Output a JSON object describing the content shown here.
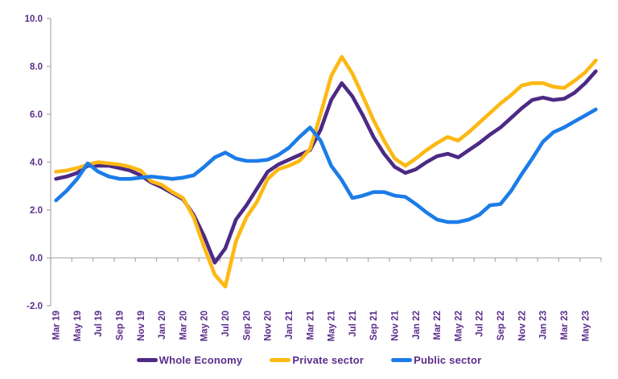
{
  "chart_data": {
    "type": "line",
    "title": "",
    "categories": [
      "Mar 19",
      "Apr 19",
      "May 19",
      "Jun 19",
      "Jul 19",
      "Aug 19",
      "Sep 19",
      "Oct 19",
      "Nov 19",
      "Dec 19",
      "Jan 20",
      "Feb 20",
      "Mar 20",
      "Apr 20",
      "May 20",
      "Jun 20",
      "Jul 20",
      "Aug 20",
      "Sep 20",
      "Oct 20",
      "Nov 20",
      "Dec 20",
      "Jan 21",
      "Feb 21",
      "Mar 21",
      "Apr 21",
      "May 21",
      "Jun 21",
      "Jul 21",
      "Aug 21",
      "Sep 21",
      "Oct 21",
      "Nov 21",
      "Dec 21",
      "Jan 22",
      "Feb 22",
      "Mar 22",
      "Apr 22",
      "May 22",
      "Jun 22",
      "Jul 22",
      "Aug 22",
      "Sep 22",
      "Oct 22",
      "Nov 22",
      "Dec 22",
      "Jan 23",
      "Feb 23",
      "Mar 23",
      "Apr 23",
      "May 23",
      "Jun 23"
    ],
    "x_labels_shown": [
      "Mar 19",
      "May 19",
      "Jul 19",
      "Sep 19",
      "Nov 19",
      "Jan 20",
      "Mar 20",
      "May 20",
      "Jul 20",
      "Sep 20",
      "Nov 20",
      "Jan 21",
      "Mar 21",
      "May 21",
      "Jul 21",
      "Sep 21",
      "Nov 21",
      "Jan 22",
      "Mar 22",
      "May 22",
      "Jul 22",
      "Sep 22",
      "Nov 22",
      "Jan 23",
      "Mar 23",
      "May 23"
    ],
    "series": [
      {
        "name": "Whole Economy",
        "color": "#4c2a85",
        "values": [
          3.3,
          3.4,
          3.55,
          3.85,
          3.85,
          3.85,
          3.75,
          3.65,
          3.45,
          3.15,
          2.95,
          2.7,
          2.45,
          1.8,
          0.9,
          -0.2,
          0.4,
          1.6,
          2.2,
          2.9,
          3.6,
          3.9,
          4.1,
          4.3,
          4.5,
          5.35,
          6.6,
          7.3,
          6.75,
          5.95,
          5.05,
          4.35,
          3.8,
          3.55,
          3.7,
          4.0,
          4.25,
          4.35,
          4.2,
          4.5,
          4.8,
          5.15,
          5.45,
          5.85,
          6.25,
          6.6,
          6.7,
          6.6,
          6.65,
          6.9,
          7.3,
          7.8
        ]
      },
      {
        "name": "Private sector",
        "color": "#fdb813",
        "values": [
          3.6,
          3.65,
          3.75,
          3.9,
          4.0,
          3.95,
          3.9,
          3.8,
          3.65,
          3.2,
          3.05,
          2.75,
          2.5,
          1.7,
          0.45,
          -0.7,
          -1.2,
          0.7,
          1.7,
          2.35,
          3.3,
          3.7,
          3.85,
          4.05,
          4.55,
          6.0,
          7.6,
          8.4,
          7.7,
          6.75,
          5.75,
          4.9,
          4.15,
          3.85,
          4.15,
          4.5,
          4.8,
          5.05,
          4.9,
          5.25,
          5.65,
          6.05,
          6.45,
          6.8,
          7.2,
          7.3,
          7.3,
          7.15,
          7.1,
          7.4,
          7.75,
          8.25
        ]
      },
      {
        "name": "Public sector",
        "color": "#1c7ce8",
        "values": [
          2.4,
          2.8,
          3.3,
          3.95,
          3.6,
          3.4,
          3.3,
          3.3,
          3.35,
          3.4,
          3.35,
          3.3,
          3.35,
          3.45,
          3.8,
          4.2,
          4.4,
          4.15,
          4.05,
          4.05,
          4.1,
          4.3,
          4.6,
          5.05,
          5.45,
          4.9,
          3.85,
          3.25,
          2.5,
          2.6,
          2.75,
          2.75,
          2.6,
          2.55,
          2.25,
          1.9,
          1.6,
          1.5,
          1.5,
          1.6,
          1.8,
          2.2,
          2.25,
          2.8,
          3.5,
          4.15,
          4.85,
          5.25,
          5.45,
          5.7,
          5.95,
          6.2
        ]
      }
    ],
    "ylim": [
      -2.0,
      10.0
    ],
    "yticks": [
      "10.0",
      "8.0",
      "6.0",
      "4.0",
      "2.0",
      "0.0",
      "-2.0"
    ],
    "ytick_values": [
      10,
      8,
      6,
      4,
      2,
      0,
      -2
    ],
    "grid": "off",
    "legend_position": "bottom",
    "axis_line_color": "#b0b0b0",
    "label_color": "#5b2d8a"
  },
  "legend": {
    "items": [
      {
        "label": "Whole Economy"
      },
      {
        "label": "Private sector"
      },
      {
        "label": "Public sector"
      }
    ]
  }
}
